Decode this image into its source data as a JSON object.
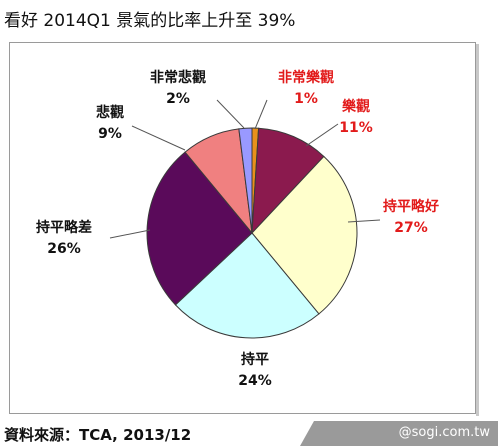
{
  "title": "看好 2014Q1 景氣的比率上升至 39%",
  "source": {
    "prefix": "資料來源：",
    "org": "TCA",
    "year": ", 2013/12"
  },
  "watermark": "@sogi.com.tw",
  "colors": {
    "positive_label": "#e21b1b",
    "negative_label": "#111111",
    "leader_line": "#555555"
  },
  "chart_data": {
    "type": "pie",
    "start_angle_deg": 90,
    "direction": "clockwise",
    "slices": [
      {
        "name": "非常樂觀",
        "percent_label": "1%",
        "value": 1,
        "color": "#e8901c",
        "label_color": "#e21b1b"
      },
      {
        "name": "樂觀",
        "percent_label": "11%",
        "value": 11,
        "color": "#8b1a4e",
        "label_color": "#e21b1b"
      },
      {
        "name": "持平略好",
        "percent_label": "27%",
        "value": 27,
        "color": "#ffffcc",
        "label_color": "#e21b1b"
      },
      {
        "name": "持平",
        "percent_label": "24%",
        "value": 24,
        "color": "#ccffff",
        "label_color": "#111111"
      },
      {
        "name": "持平略差",
        "percent_label": "26%",
        "value": 26,
        "color": "#5a0a5a",
        "label_color": "#111111"
      },
      {
        "name": "悲觀",
        "percent_label": "9%",
        "value": 9,
        "color": "#f08080",
        "label_color": "#111111"
      },
      {
        "name": "非常悲觀",
        "percent_label": "2%",
        "value": 2,
        "color": "#9999ff",
        "label_color": "#111111"
      }
    ]
  }
}
